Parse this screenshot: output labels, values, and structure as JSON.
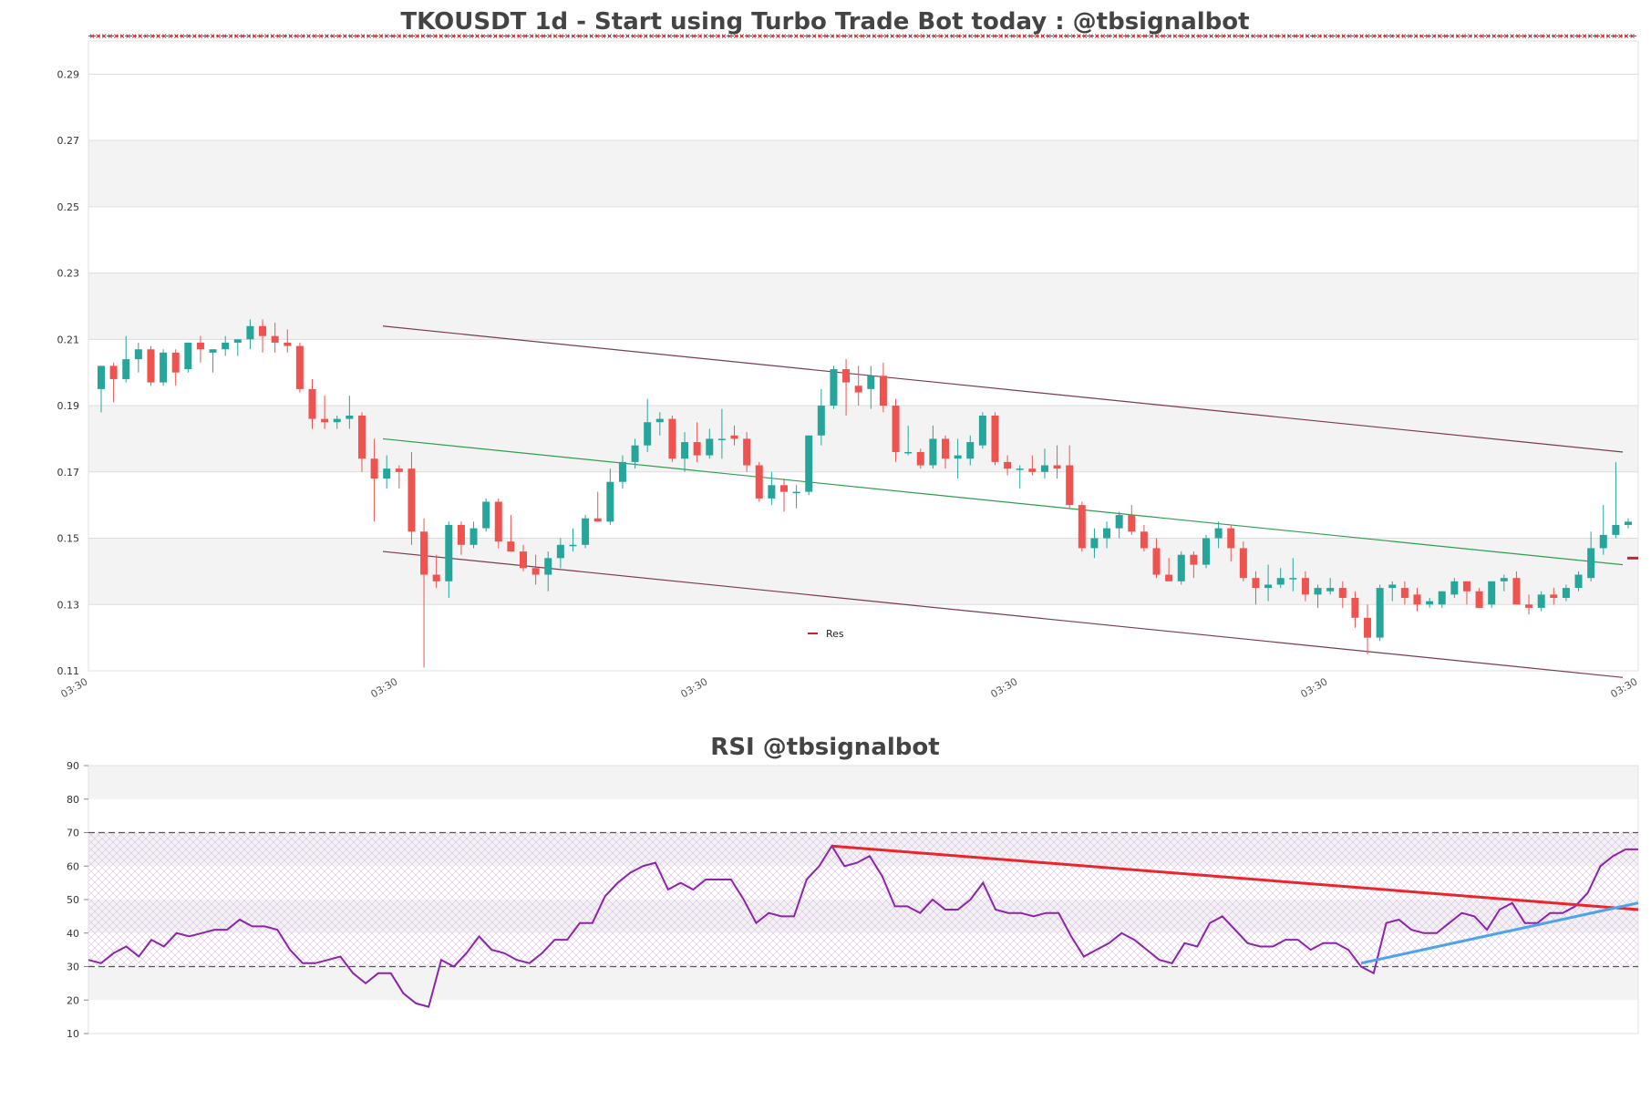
{
  "colors": {
    "up": "#26a69a",
    "down": "#ef5350",
    "channel_upper": "#7b3b4f",
    "channel_lower": "#7b3b4f",
    "channel_mid": "#2e9e4f",
    "resistance": "#c0262b",
    "rsi_line": "#8e24aa",
    "rsi_trend_down": "#e8262b",
    "rsi_trend_up": "#4ea3ea",
    "band": "#f3f3f3",
    "grid": "#dddddd"
  },
  "chart_data": [
    {
      "type": "candlestick",
      "title": "TKOUSDT 1d - Start using Turbo Trade Bot today : @tbsignalbot",
      "ylim": [
        0.11,
        0.3
      ],
      "y_ticks": [
        "0.11",
        "0.13",
        "0.15",
        "0.17",
        "0.19",
        "0.21",
        "0.23",
        "0.25",
        "0.27",
        "0.29"
      ],
      "x_tick_labels": [
        "03:30",
        "03:30",
        "03:30",
        "03:30",
        "03:30",
        "03:30"
      ],
      "legend": [
        {
          "label": "Res",
          "color": "#c0262b"
        }
      ],
      "resistance_level": 0.144,
      "top_marker_level": 0.3015,
      "candles": [
        [
          0.195,
          0.202,
          0.188,
          0.202
        ],
        [
          0.202,
          0.203,
          0.191,
          0.198
        ],
        [
          0.198,
          0.211,
          0.197,
          0.204
        ],
        [
          0.204,
          0.209,
          0.2,
          0.207
        ],
        [
          0.207,
          0.208,
          0.196,
          0.197
        ],
        [
          0.197,
          0.207,
          0.196,
          0.206
        ],
        [
          0.206,
          0.207,
          0.196,
          0.2
        ],
        [
          0.201,
          0.209,
          0.2,
          0.209
        ],
        [
          0.209,
          0.211,
          0.203,
          0.207
        ],
        [
          0.206,
          0.206,
          0.2,
          0.207
        ],
        [
          0.207,
          0.211,
          0.205,
          0.209
        ],
        [
          0.209,
          0.21,
          0.205,
          0.21
        ],
        [
          0.21,
          0.216,
          0.207,
          0.214
        ],
        [
          0.214,
          0.216,
          0.206,
          0.211
        ],
        [
          0.211,
          0.215,
          0.206,
          0.209
        ],
        [
          0.209,
          0.213,
          0.206,
          0.208
        ],
        [
          0.208,
          0.209,
          0.194,
          0.195
        ],
        [
          0.195,
          0.198,
          0.183,
          0.186
        ],
        [
          0.186,
          0.193,
          0.183,
          0.185
        ],
        [
          0.185,
          0.187,
          0.183,
          0.186
        ],
        [
          0.186,
          0.193,
          0.183,
          0.187
        ],
        [
          0.187,
          0.188,
          0.17,
          0.174
        ],
        [
          0.174,
          0.18,
          0.155,
          0.168
        ],
        [
          0.168,
          0.175,
          0.165,
          0.171
        ],
        [
          0.171,
          0.172,
          0.165,
          0.17
        ],
        [
          0.171,
          0.176,
          0.148,
          0.152
        ],
        [
          0.152,
          0.156,
          0.111,
          0.139
        ],
        [
          0.139,
          0.145,
          0.135,
          0.137
        ],
        [
          0.137,
          0.155,
          0.132,
          0.154
        ],
        [
          0.154,
          0.155,
          0.145,
          0.148
        ],
        [
          0.148,
          0.155,
          0.147,
          0.153
        ],
        [
          0.153,
          0.162,
          0.152,
          0.161
        ],
        [
          0.161,
          0.162,
          0.147,
          0.149
        ],
        [
          0.149,
          0.157,
          0.146,
          0.146
        ],
        [
          0.146,
          0.148,
          0.14,
          0.141
        ],
        [
          0.141,
          0.145,
          0.136,
          0.139
        ],
        [
          0.139,
          0.146,
          0.134,
          0.144
        ],
        [
          0.144,
          0.15,
          0.141,
          0.148
        ],
        [
          0.148,
          0.153,
          0.146,
          0.148
        ],
        [
          0.148,
          0.157,
          0.147,
          0.156
        ],
        [
          0.156,
          0.164,
          0.155,
          0.155
        ],
        [
          0.155,
          0.171,
          0.154,
          0.167
        ],
        [
          0.167,
          0.175,
          0.165,
          0.173
        ],
        [
          0.173,
          0.18,
          0.171,
          0.178
        ],
        [
          0.178,
          0.192,
          0.176,
          0.185
        ],
        [
          0.185,
          0.188,
          0.181,
          0.186
        ],
        [
          0.186,
          0.187,
          0.173,
          0.174
        ],
        [
          0.174,
          0.182,
          0.17,
          0.179
        ],
        [
          0.179,
          0.185,
          0.173,
          0.175
        ],
        [
          0.175,
          0.183,
          0.174,
          0.18
        ],
        [
          0.18,
          0.189,
          0.174,
          0.18
        ],
        [
          0.181,
          0.184,
          0.178,
          0.18
        ],
        [
          0.18,
          0.182,
          0.17,
          0.172
        ],
        [
          0.172,
          0.173,
          0.161,
          0.162
        ],
        [
          0.162,
          0.17,
          0.16,
          0.166
        ],
        [
          0.166,
          0.168,
          0.158,
          0.164
        ],
        [
          0.164,
          0.166,
          0.159,
          0.164
        ],
        [
          0.164,
          0.181,
          0.163,
          0.181
        ],
        [
          0.181,
          0.195,
          0.178,
          0.19
        ],
        [
          0.19,
          0.202,
          0.189,
          0.201
        ],
        [
          0.201,
          0.204,
          0.187,
          0.197
        ],
        [
          0.196,
          0.202,
          0.19,
          0.194
        ],
        [
          0.195,
          0.202,
          0.189,
          0.199
        ],
        [
          0.199,
          0.203,
          0.188,
          0.19
        ],
        [
          0.19,
          0.192,
          0.173,
          0.176
        ],
        [
          0.176,
          0.184,
          0.175,
          0.176
        ],
        [
          0.176,
          0.177,
          0.171,
          0.172
        ],
        [
          0.172,
          0.184,
          0.171,
          0.18
        ],
        [
          0.18,
          0.181,
          0.171,
          0.174
        ],
        [
          0.174,
          0.18,
          0.168,
          0.175
        ],
        [
          0.174,
          0.181,
          0.172,
          0.179
        ],
        [
          0.178,
          0.188,
          0.177,
          0.187
        ],
        [
          0.187,
          0.188,
          0.172,
          0.173
        ],
        [
          0.173,
          0.175,
          0.169,
          0.171
        ],
        [
          0.171,
          0.172,
          0.165,
          0.171
        ],
        [
          0.171,
          0.175,
          0.169,
          0.17
        ],
        [
          0.17,
          0.177,
          0.168,
          0.172
        ],
        [
          0.172,
          0.178,
          0.168,
          0.171
        ],
        [
          0.172,
          0.178,
          0.159,
          0.16
        ],
        [
          0.16,
          0.161,
          0.146,
          0.147
        ],
        [
          0.147,
          0.153,
          0.144,
          0.15
        ],
        [
          0.15,
          0.155,
          0.147,
          0.153
        ],
        [
          0.153,
          0.158,
          0.15,
          0.157
        ],
        [
          0.157,
          0.16,
          0.151,
          0.152
        ],
        [
          0.152,
          0.154,
          0.146,
          0.147
        ],
        [
          0.147,
          0.15,
          0.138,
          0.139
        ],
        [
          0.139,
          0.144,
          0.137,
          0.137
        ],
        [
          0.137,
          0.146,
          0.136,
          0.145
        ],
        [
          0.145,
          0.146,
          0.138,
          0.142
        ],
        [
          0.142,
          0.151,
          0.141,
          0.15
        ],
        [
          0.15,
          0.155,
          0.147,
          0.153
        ],
        [
          0.153,
          0.154,
          0.143,
          0.147
        ],
        [
          0.147,
          0.149,
          0.137,
          0.138
        ],
        [
          0.138,
          0.14,
          0.13,
          0.135
        ],
        [
          0.135,
          0.142,
          0.131,
          0.136
        ],
        [
          0.136,
          0.141,
          0.135,
          0.138
        ],
        [
          0.138,
          0.144,
          0.134,
          0.138
        ],
        [
          0.138,
          0.14,
          0.131,
          0.133
        ],
        [
          0.133,
          0.136,
          0.129,
          0.135
        ],
        [
          0.134,
          0.138,
          0.133,
          0.135
        ],
        [
          0.135,
          0.137,
          0.129,
          0.132
        ],
        [
          0.132,
          0.134,
          0.123,
          0.126
        ],
        [
          0.126,
          0.13,
          0.115,
          0.12
        ],
        [
          0.12,
          0.136,
          0.119,
          0.135
        ],
        [
          0.135,
          0.137,
          0.131,
          0.136
        ],
        [
          0.135,
          0.137,
          0.13,
          0.132
        ],
        [
          0.133,
          0.135,
          0.128,
          0.13
        ],
        [
          0.13,
          0.132,
          0.129,
          0.131
        ],
        [
          0.13,
          0.134,
          0.129,
          0.134
        ],
        [
          0.133,
          0.138,
          0.132,
          0.137
        ],
        [
          0.137,
          0.137,
          0.13,
          0.134
        ],
        [
          0.134,
          0.135,
          0.129,
          0.129
        ],
        [
          0.13,
          0.137,
          0.129,
          0.137
        ],
        [
          0.137,
          0.139,
          0.134,
          0.138
        ],
        [
          0.138,
          0.14,
          0.13,
          0.13
        ],
        [
          0.13,
          0.133,
          0.127,
          0.129
        ],
        [
          0.129,
          0.134,
          0.128,
          0.133
        ],
        [
          0.133,
          0.135,
          0.13,
          0.132
        ],
        [
          0.132,
          0.136,
          0.131,
          0.135
        ],
        [
          0.135,
          0.14,
          0.134,
          0.139
        ],
        [
          0.138,
          0.152,
          0.137,
          0.147
        ],
        [
          0.147,
          0.16,
          0.145,
          0.151
        ],
        [
          0.151,
          0.173,
          0.15,
          0.154
        ],
        [
          0.154,
          0.156,
          0.153,
          0.155
        ]
      ],
      "channel": {
        "upper": {
          "from": [
            0.19,
            0.214
          ],
          "to": [
            0.99,
            0.176
          ]
        },
        "mid": {
          "from": [
            0.19,
            0.18
          ],
          "to": [
            0.99,
            0.142
          ]
        },
        "lower": {
          "from": [
            0.19,
            0.146
          ],
          "to": [
            0.99,
            0.108
          ]
        }
      }
    },
    {
      "type": "line",
      "title": "RSI @tbsignalbot",
      "ylim": [
        10,
        90
      ],
      "y_ticks": [
        "10",
        "20",
        "30",
        "40",
        "50",
        "60",
        "70",
        "80",
        "90"
      ],
      "levels": [
        30,
        70
      ],
      "series": [
        {
          "values": [
            32,
            31,
            34,
            36,
            33,
            38,
            36,
            40,
            39,
            40,
            41,
            41,
            44,
            42,
            42,
            41,
            35,
            31,
            31,
            32,
            33,
            28,
            25,
            28,
            28,
            22,
            19,
            18,
            32,
            30,
            34,
            39,
            35,
            34,
            32,
            31,
            34,
            38,
            38,
            43,
            43,
            51,
            55,
            58,
            60,
            61,
            53,
            55,
            53,
            56,
            56,
            56,
            50,
            43,
            46,
            45,
            45,
            56,
            60,
            66,
            60,
            61,
            63,
            57,
            48,
            48,
            46,
            50,
            47,
            47,
            50,
            55,
            47,
            46,
            46,
            45,
            46,
            46,
            39,
            33,
            35,
            37,
            40,
            38,
            35,
            32,
            31,
            37,
            36,
            43,
            45,
            41,
            37,
            36,
            36,
            38,
            38,
            35,
            37,
            37,
            35,
            30,
            28,
            43,
            44,
            41,
            40,
            40,
            43,
            46,
            45,
            41,
            47,
            49,
            43,
            43,
            46,
            46,
            48,
            52,
            60,
            63,
            65,
            65
          ]
        }
      ],
      "trendlines": [
        {
          "from": [
            59,
            66
          ],
          "to": [
            123,
            47
          ]
        },
        {
          "from": [
            101,
            31
          ],
          "to": [
            123,
            49
          ]
        }
      ]
    }
  ]
}
